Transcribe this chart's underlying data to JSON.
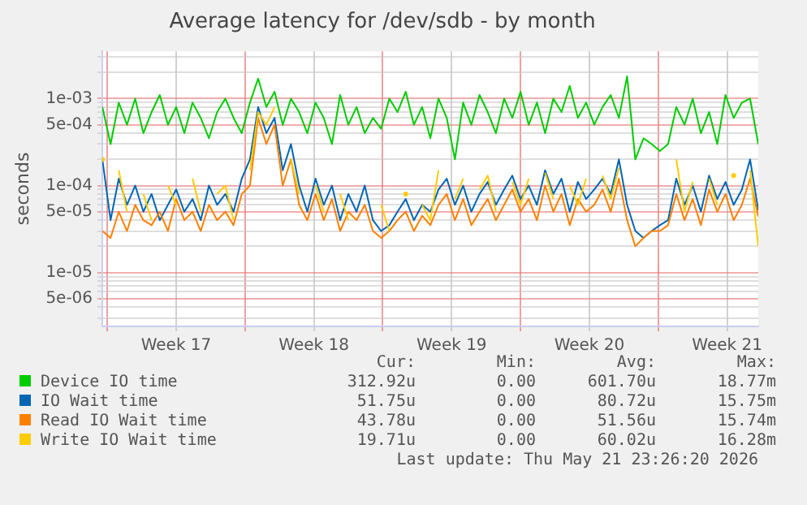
{
  "chart_data": {
    "type": "line",
    "title": "Average latency for /dev/sdb - by month",
    "ylabel": "seconds",
    "x": [
      "2026-04-19T18:00",
      "2026-04-20T04:00",
      "2026-04-20T14:00",
      "2026-04-21T00:00",
      "2026-04-21T10:00",
      "2026-04-21T20:00",
      "2026-04-22T06:00",
      "2026-04-22T16:00",
      "2026-04-23T02:00",
      "2026-04-23T12:00",
      "2026-04-23T22:00",
      "2026-04-24T08:00",
      "2026-04-24T18:00",
      "2026-04-25T04:00",
      "2026-04-25T14:00",
      "2026-04-26T00:00",
      "2026-04-26T10:00",
      "2026-04-26T20:00",
      "2026-04-27T06:00",
      "2026-04-27T16:00",
      "2026-04-28T02:00",
      "2026-04-28T12:00",
      "2026-04-28T22:00",
      "2026-04-29T08:00",
      "2026-04-29T18:00",
      "2026-04-30T04:00",
      "2026-04-30T14:00",
      "2026-05-01T00:00",
      "2026-05-01T10:00",
      "2026-05-01T20:00",
      "2026-05-02T06:00",
      "2026-05-02T16:00",
      "2026-05-03T02:00",
      "2026-05-03T12:00",
      "2026-05-03T22:00",
      "2026-05-04T08:00",
      "2026-05-04T18:00",
      "2026-05-05T04:00",
      "2026-05-05T14:00",
      "2026-05-06T00:00",
      "2026-05-06T10:00",
      "2026-05-06T20:00",
      "2026-05-07T06:00",
      "2026-05-07T16:00",
      "2026-05-08T02:00",
      "2026-05-08T12:00",
      "2026-05-08T22:00",
      "2026-05-09T08:00",
      "2026-05-09T18:00",
      "2026-05-10T04:00",
      "2026-05-10T14:00",
      "2026-05-11T00:00",
      "2026-05-11T10:00",
      "2026-05-11T20:00",
      "2026-05-12T06:00",
      "2026-05-12T16:00",
      "2026-05-13T02:00",
      "2026-05-13T12:00",
      "2026-05-13T22:00",
      "2026-05-14T08:00",
      "2026-05-14T18:00",
      "2026-05-15T04:00",
      "2026-05-15T14:00",
      "2026-05-16T00:00",
      "2026-05-16T10:00",
      "2026-05-16T20:00",
      "2026-05-17T06:00",
      "2026-05-17T16:00",
      "2026-05-18T02:00",
      "2026-05-18T12:00",
      "2026-05-18T22:00",
      "2026-05-19T08:00",
      "2026-05-19T18:00",
      "2026-05-20T04:00",
      "2026-05-20T14:00",
      "2026-05-21T00:00",
      "2026-05-21T10:00",
      "2026-05-21T20:00",
      "2026-05-22T06:00",
      "2026-05-22T16:00",
      "2026-05-23T02:00"
    ],
    "series": [
      {
        "name": "Device IO time",
        "color": "#00cc00",
        "values": [
          0.0008,
          0.0003,
          0.0009,
          0.0005,
          0.001,
          0.0004,
          0.0007,
          0.0011,
          0.0005,
          0.0008,
          0.0004,
          0.0009,
          0.0006,
          0.00035,
          0.0007,
          0.001,
          0.0006,
          0.0004,
          0.0009,
          0.0017,
          0.0008,
          0.0012,
          0.0005,
          0.001,
          0.0007,
          0.0004,
          0.0009,
          0.0006,
          0.0003,
          0.0011,
          0.0005,
          0.0008,
          0.0004,
          0.0006,
          0.00045,
          0.001,
          0.0007,
          0.0012,
          0.0005,
          0.0008,
          0.00035,
          0.001,
          0.0006,
          0.0002,
          0.0009,
          0.0005,
          0.0011,
          0.0007,
          0.0004,
          0.001,
          0.0006,
          0.0012,
          0.0005,
          0.0009,
          0.0004,
          0.001,
          0.0007,
          0.0014,
          0.0006,
          0.0009,
          0.0005,
          0.0008,
          0.0011,
          0.0006,
          0.0018,
          0.0002,
          0.00035,
          0.0003,
          0.00025,
          0.0003,
          0.0008,
          0.0005,
          0.001,
          0.0004,
          0.0007,
          0.0003,
          0.0011,
          0.0006,
          0.0009,
          0.001,
          0.0003
        ]
      },
      {
        "name": "IO Wait time",
        "color": "#0066b3",
        "values": [
          0.0002,
          4e-05,
          0.00012,
          6e-05,
          0.0001,
          5e-05,
          8e-05,
          4e-05,
          6e-05,
          9e-05,
          5e-05,
          7e-05,
          4e-05,
          0.0001,
          6e-05,
          8e-05,
          5e-05,
          0.00012,
          0.0002,
          0.0008,
          0.0004,
          0.0006,
          0.00015,
          0.0003,
          0.0001,
          5e-05,
          0.00012,
          6e-05,
          0.0001,
          4e-05,
          8e-05,
          5e-05,
          0.0001,
          4e-05,
          3e-05,
          3.5e-05,
          5e-05,
          7e-05,
          4e-05,
          6e-05,
          5e-05,
          9e-05,
          0.00012,
          6e-05,
          0.0001,
          5e-05,
          8e-05,
          0.00011,
          6e-05,
          9e-05,
          0.00013,
          7e-05,
          0.0001,
          6e-05,
          0.00015,
          8e-05,
          0.00012,
          5e-05,
          0.00011,
          7e-05,
          9e-05,
          0.00012,
          8e-05,
          0.0002,
          6e-05,
          3e-05,
          2.5e-05,
          3e-05,
          3.5e-05,
          4e-05,
          0.00012,
          6e-05,
          0.0001,
          5e-05,
          0.00013,
          7e-05,
          0.00011,
          6e-05,
          9e-05,
          0.0002,
          5.2e-05
        ]
      },
      {
        "name": "Read IO Wait time",
        "color": "#ff8000",
        "values": [
          3e-05,
          2.5e-05,
          5e-05,
          3e-05,
          6e-05,
          4e-05,
          3.5e-05,
          5e-05,
          3e-05,
          7e-05,
          4e-05,
          5e-05,
          3e-05,
          6e-05,
          4e-05,
          5e-05,
          3.5e-05,
          8e-05,
          0.0001,
          0.0006,
          0.0003,
          0.0005,
          0.0001,
          0.0002,
          6e-05,
          4e-05,
          8e-05,
          4e-05,
          7e-05,
          3e-05,
          5e-05,
          4e-05,
          6e-05,
          3e-05,
          2.5e-05,
          3e-05,
          4e-05,
          5e-05,
          3e-05,
          4.5e-05,
          3.5e-05,
          6e-05,
          8e-05,
          4e-05,
          7e-05,
          3.5e-05,
          5e-05,
          7e-05,
          4e-05,
          6e-05,
          9e-05,
          5e-05,
          7e-05,
          4e-05,
          0.0001,
          5e-05,
          8e-05,
          3.5e-05,
          7e-05,
          5e-05,
          6e-05,
          9e-05,
          5e-05,
          0.00012,
          4e-05,
          2e-05,
          2.5e-05,
          3e-05,
          3e-05,
          3.5e-05,
          8e-05,
          4e-05,
          7e-05,
          3.5e-05,
          9e-05,
          5e-05,
          8e-05,
          4e-05,
          6e-05,
          0.00012,
          4.4e-05
        ]
      },
      {
        "name": "Write IO Wait time",
        "color": "#ffcc00",
        "values": [
          0.0002,
          null,
          0.00015,
          5e-05,
          null,
          8e-05,
          4e-05,
          null,
          0.0001,
          6e-05,
          null,
          0.00012,
          5e-05,
          null,
          8e-05,
          0.0001,
          4e-05,
          null,
          0.00015,
          0.0007,
          0.0005,
          0.0008,
          null,
          0.0002,
          8e-05,
          null,
          0.0001,
          5e-05,
          null,
          8e-05,
          4e-05,
          null,
          null,
          null,
          6e-05,
          3e-05,
          null,
          8e-05,
          null,
          6e-05,
          4e-05,
          0.00015,
          null,
          7e-05,
          0.00012,
          null,
          9e-05,
          0.00013,
          5e-05,
          null,
          0.00011,
          6e-05,
          0.00012,
          null,
          0.00014,
          7e-05,
          null,
          0.0001,
          6e-05,
          0.00012,
          null,
          0.00013,
          7e-05,
          0.00016,
          null,
          null,
          null,
          null,
          null,
          null,
          0.0002,
          5e-05,
          0.00011,
          null,
          0.00012,
          6e-05,
          null,
          0.00013,
          null,
          0.00015,
          2e-05
        ]
      }
    ],
    "xlim": [
      "2026-04-19T18:00",
      "2026-05-23T02:00"
    ],
    "xticks": [
      {
        "value": "2026-04-20T00:00",
        "label": null
      },
      {
        "value": "2026-04-23T12:00",
        "label": "Week 17"
      },
      {
        "value": "2026-04-27T00:00",
        "label": null
      },
      {
        "value": "2026-04-30T12:00",
        "label": "Week 18"
      },
      {
        "value": "2026-05-04T00:00",
        "label": null
      },
      {
        "value": "2026-05-07T12:00",
        "label": "Week 19"
      },
      {
        "value": "2026-05-11T00:00",
        "label": null
      },
      {
        "value": "2026-05-14T12:00",
        "label": "Week 20"
      },
      {
        "value": "2026-05-18T00:00",
        "label": null
      },
      {
        "value": "2026-05-21T12:00",
        "label": "Week 21"
      }
    ],
    "ylim": [
      2.4e-06,
      0.0035
    ],
    "yticks": [
      {
        "value": 3e-06,
        "label": null
      },
      {
        "value": 4e-06,
        "label": null
      },
      {
        "value": 5e-06,
        "label": "5e-06"
      },
      {
        "value": 6e-06,
        "label": null
      },
      {
        "value": 7e-06,
        "label": null
      },
      {
        "value": 8e-06,
        "label": null
      },
      {
        "value": 9e-06,
        "label": null
      },
      {
        "value": 1e-05,
        "label": "1e-05"
      },
      {
        "value": 2e-05,
        "label": null
      },
      {
        "value": 3e-05,
        "label": null
      },
      {
        "value": 4e-05,
        "label": null
      },
      {
        "value": 5e-05,
        "label": "5e-05"
      },
      {
        "value": 6e-05,
        "label": null
      },
      {
        "value": 7e-05,
        "label": null
      },
      {
        "value": 8e-05,
        "label": null
      },
      {
        "value": 9e-05,
        "label": null
      },
      {
        "value": 0.0001,
        "label": "1e-04"
      },
      {
        "value": 0.0002,
        "label": null
      },
      {
        "value": 0.0003,
        "label": null
      },
      {
        "value": 0.0004,
        "label": null
      },
      {
        "value": 0.0005,
        "label": "5e-04"
      },
      {
        "value": 0.0006,
        "label": null
      },
      {
        "value": 0.0007,
        "label": null
      },
      {
        "value": 0.0008,
        "label": null
      },
      {
        "value": 0.0009,
        "label": null
      },
      {
        "value": 0.001,
        "label": "1e-03"
      },
      {
        "value": 0.002,
        "label": null
      },
      {
        "value": 0.003,
        "label": null
      }
    ],
    "log": "y",
    "grid": true,
    "legend": "bottom",
    "marker": "none",
    "line_style": "solid",
    "annotations": [
      "Cur:",
      "Min:",
      "Avg:",
      "Max:",
      "312.92u",
      "0.00",
      "601.70u",
      "18.77m",
      "51.75u",
      "0.00",
      "80.72u",
      "15.75m",
      "43.78u",
      "0.00",
      "51.56u",
      "15.74m",
      "19.71u",
      "0.00",
      "60.02u",
      "16.28m",
      "Last update: Thu May 21 23:26:20 2026"
    ]
  }
}
